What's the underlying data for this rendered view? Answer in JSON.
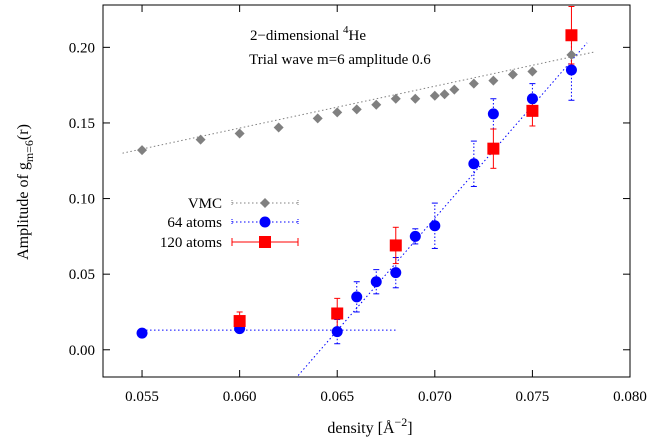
{
  "chart_data": {
    "type": "scatter",
    "xlabel": "density [Å",
    "xlabel_sup": "−2",
    "xlabel_close": "]",
    "ylabel": "Amplitude of g",
    "ylabel_sub": "m=6",
    "ylabel_close": "(r)",
    "xlim": [
      0.053,
      0.08
    ],
    "ylim": [
      -0.018,
      0.228
    ],
    "xticks": [
      0.055,
      0.06,
      0.065,
      0.07,
      0.075,
      0.08
    ],
    "xtick_labels": [
      "0.055",
      "0.060",
      "0.065",
      "0.070",
      "0.075",
      "0.080"
    ],
    "yticks": [
      0.0,
      0.05,
      0.1,
      0.15,
      0.2
    ],
    "ytick_labels": [
      "0.00",
      "0.05",
      "0.10",
      "0.15",
      "0.20"
    ],
    "annotations": {
      "line1_pre": "2−dimensional ",
      "line1_sup": "4",
      "line1_post": "He",
      "line2": "Trial wave m=6 amplitude 0.6"
    },
    "legend_position": "center-left",
    "series": [
      {
        "name": "VMC",
        "marker": "diamond",
        "color": "#808080",
        "line_style": "dotted",
        "x": [
          0.055,
          0.058,
          0.06,
          0.062,
          0.064,
          0.065,
          0.066,
          0.067,
          0.068,
          0.069,
          0.07,
          0.0705,
          0.071,
          0.072,
          0.073,
          0.074,
          0.075,
          0.077
        ],
        "y": [
          0.132,
          0.139,
          0.143,
          0.147,
          0.153,
          0.157,
          0.159,
          0.162,
          0.166,
          0.166,
          0.168,
          0.169,
          0.172,
          0.176,
          0.178,
          0.182,
          0.184,
          0.195
        ]
      },
      {
        "name": "64 atoms",
        "marker": "circle",
        "color": "#0000ff",
        "line_style": "dotted",
        "x": [
          0.055,
          0.06,
          0.065,
          0.066,
          0.067,
          0.068,
          0.069,
          0.07,
          0.072,
          0.073,
          0.075,
          0.077
        ],
        "y": [
          0.011,
          0.014,
          0.012,
          0.035,
          0.045,
          0.051,
          0.075,
          0.082,
          0.123,
          0.156,
          0.166,
          0.185
        ],
        "err": [
          0,
          0,
          0.008,
          0.01,
          0.008,
          0.01,
          0.005,
          0.015,
          0.015,
          0.01,
          0.01,
          0.02
        ]
      },
      {
        "name": "120 atoms",
        "marker": "square",
        "color": "#ff0000",
        "line_style": "none",
        "x": [
          0.06,
          0.065,
          0.068,
          0.073,
          0.075,
          0.077
        ],
        "y": [
          0.019,
          0.024,
          0.069,
          0.133,
          0.158,
          0.208
        ],
        "err": [
          0.006,
          0.01,
          0.012,
          0.013,
          0.01,
          0.019
        ]
      }
    ],
    "fit_lines": [
      {
        "color": "#0000ff",
        "x": [
          0.055,
          0.068
        ],
        "y": [
          0.013,
          0.013
        ]
      },
      {
        "color": "#0000ff",
        "x": [
          0.063,
          0.0778
        ],
        "y": [
          -0.017,
          0.203
        ]
      },
      {
        "color": "#808080",
        "x": [
          0.054,
          0.0782
        ],
        "y": [
          0.13,
          0.197
        ]
      }
    ]
  }
}
